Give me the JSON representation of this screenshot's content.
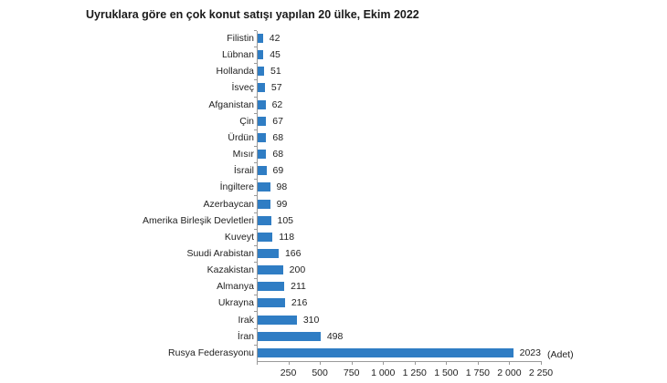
{
  "chart_data": {
    "type": "bar",
    "orientation": "horizontal",
    "title": "Uyruklara göre en çok konut satışı yapılan 20 ülke, Ekim 2022",
    "xlabel": "",
    "ylabel": "",
    "unit_label": "(Adet)",
    "xlim": [
      0,
      2250
    ],
    "xticks": [
      0,
      250,
      500,
      750,
      1000,
      1250,
      1500,
      1750,
      2000,
      2250
    ],
    "xtick_labels": [
      "",
      "250",
      "500",
      "750",
      "1 000",
      "1 250",
      "1 500",
      "1 750",
      "2 000",
      "2 250"
    ],
    "grid": false,
    "legend": null,
    "bar_color": "#2f7dc4",
    "categories": [
      "Filistin",
      "Lübnan",
      "Hollanda",
      "İsveç",
      "Afganistan",
      "Çin",
      "Ürdün",
      "Mısır",
      "İsrail",
      "İngiltere",
      "Azerbaycan",
      "Amerika Birleşik Devletleri",
      "Kuveyt",
      "Suudi Arabistan",
      "Kazakistan",
      "Almanya",
      "Ukrayna",
      "Irak",
      "İran",
      "Rusya Federasyonu"
    ],
    "values": [
      42,
      45,
      51,
      57,
      62,
      67,
      68,
      68,
      69,
      98,
      99,
      105,
      118,
      166,
      200,
      211,
      216,
      310,
      498,
      2023
    ],
    "data_labels": [
      "42",
      "45",
      "51",
      "57",
      "62",
      "67",
      "68",
      "68",
      "69",
      "98",
      "99",
      "105",
      "118",
      "166",
      "200",
      "211",
      "216",
      "310",
      "498",
      "2023"
    ]
  }
}
